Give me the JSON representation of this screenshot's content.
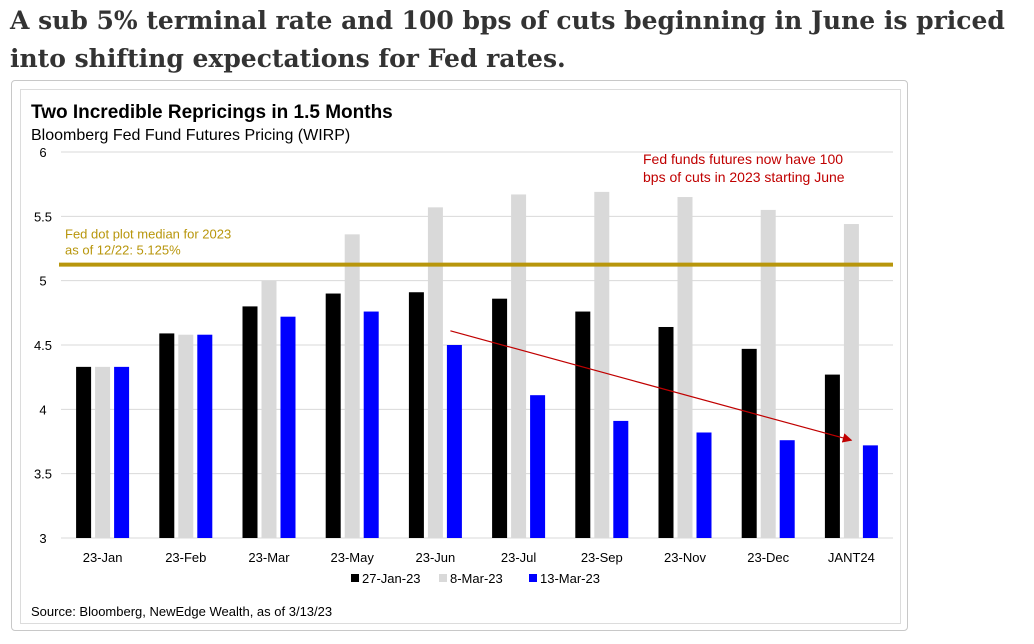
{
  "headline": "A sub 5% terminal rate and 100 bps of cuts beginning in June is priced into shifting expectations for Fed rates.",
  "chart_data": {
    "type": "bar",
    "title": "Two Incredible Repricings in 1.5 Months",
    "subtitle": "Bloomberg Fed Fund Futures Pricing (WIRP)",
    "source": "Source: Bloomberg, NewEdge Wealth, as of 3/13/23",
    "categories": [
      "23-Jan",
      "23-Feb",
      "23-Mar",
      "23-May",
      "23-Jun",
      "23-Jul",
      "23-Sep",
      "23-Nov",
      "23-Dec",
      "JANT24"
    ],
    "ylim": [
      3,
      6
    ],
    "yticks": [
      "3",
      "3.5",
      "4",
      "4.5",
      "5",
      "5.5",
      "6"
    ],
    "grid": true,
    "legend_position": "bottom",
    "series": [
      {
        "name": "27-Jan-23",
        "color": "#000000",
        "values": [
          4.33,
          4.59,
          4.8,
          4.9,
          4.91,
          4.86,
          4.76,
          4.64,
          4.47,
          4.27
        ]
      },
      {
        "name": "8-Mar-23",
        "color": "#d9d9d9",
        "values": [
          4.33,
          4.58,
          5.0,
          5.36,
          5.57,
          5.67,
          5.69,
          5.65,
          5.55,
          5.44
        ]
      },
      {
        "name": "13-Mar-23",
        "color": "#0000ff",
        "values": [
          4.33,
          4.58,
          4.72,
          4.76,
          4.5,
          4.11,
          3.91,
          3.82,
          3.76,
          3.72
        ]
      }
    ],
    "reference_line": {
      "value": 5.125,
      "color": "#b8960c",
      "label_line1": "Fed dot plot median for 2023",
      "label_line2": "as of 12/22: 5.125%"
    },
    "annotation": {
      "line1": "Fed funds futures now have 100",
      "line2": "bps of cuts in 2023 starting June",
      "color": "#c00000",
      "arrow_from": {
        "category": "23-Jun",
        "value": 4.61
      },
      "arrow_to": {
        "category": "JANT24",
        "value": 3.76
      }
    }
  }
}
